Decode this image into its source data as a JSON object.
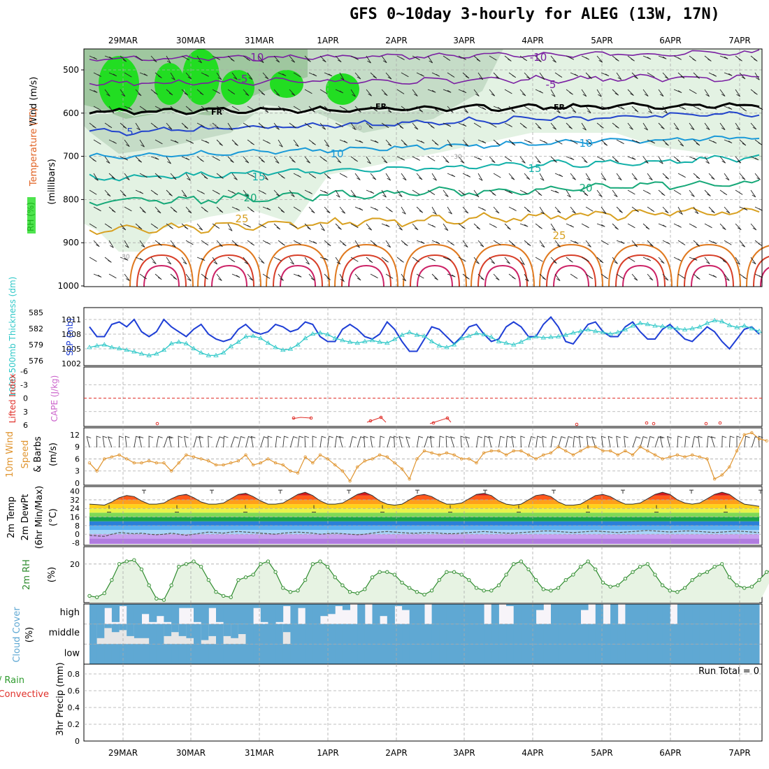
{
  "title": "GFS 0~10day 3-hourly for ALEG (13W, 17N)",
  "date_labels": [
    "29MAR",
    "30MAR",
    "31MAR",
    "1APR",
    "2APR",
    "3APR",
    "4APR",
    "5APR",
    "6APR",
    "7APR"
  ],
  "colors": {
    "rh_green": "#22dd22",
    "slp_line": "#1f3fd6",
    "thickness_line": "#2fc8c8",
    "wind_line": "#e09530",
    "rh2m_line": "#2e8b2e",
    "cloud_blue": "#5fa8d3",
    "lifted_index": "#e0302a",
    "cape": "#cc66cc"
  },
  "panels": {
    "upper": {
      "ylabel_rh": "RH (%)",
      "ylabel_temp": "Temperature (°C)",
      "ylabel_wind": "Wind (m/s)",
      "ylabel_units": "(millibars)",
      "p_ticks": [
        "500",
        "600",
        "700",
        "800",
        "900",
        "1000"
      ],
      "contour_labels": [
        {
          "text": "-10",
          "color": "#7a1fa2"
        },
        {
          "text": "-10",
          "color": "#7a1fa2"
        },
        {
          "text": "-5",
          "color": "#7a1fa2"
        },
        {
          "text": "-5",
          "color": "#7a1fa2"
        },
        {
          "text": "FR",
          "color": "#000000"
        },
        {
          "text": "FR",
          "color": "#000000"
        },
        {
          "text": "FR",
          "color": "#000000"
        },
        {
          "text": "5",
          "color": "#2244cc"
        },
        {
          "text": "10",
          "color": "#1a9ad8"
        },
        {
          "text": "10",
          "color": "#1a9ad8"
        },
        {
          "text": "15",
          "color": "#12b0a8"
        },
        {
          "text": "15",
          "color": "#12b0a8"
        },
        {
          "text": "20",
          "color": "#16a878"
        },
        {
          "text": "20",
          "color": "#16a878"
        },
        {
          "text": "25",
          "color": "#d8a020"
        },
        {
          "text": "25",
          "color": "#d8a020"
        },
        {
          "text": "50",
          "color": "#9a9a9a"
        },
        {
          "text": "50",
          "color": "#9a9a9a"
        },
        {
          "text": "30",
          "color": "#9a9a9a"
        },
        {
          "text": "30",
          "color": "#9a9a9a"
        }
      ]
    },
    "slp": {
      "ylabel_thickness": "1000-500mb Thickness (dm)",
      "ylabel_slp": "SLP (mb)",
      "ticks_thickness": [
        "585",
        "582",
        "579",
        "576"
      ],
      "ticks_slp": [
        "1011",
        "1008",
        "1005",
        "1002"
      ]
    },
    "cape": {
      "ylabel_li": "Lifted Index",
      "ylabel_cape": "CAPE (J/kg)",
      "ticks": [
        "-6",
        "-3",
        "0",
        "3",
        "6"
      ]
    },
    "wind10m": {
      "ylabel1": "10m Wind",
      "ylabel2": "Speed",
      "ylabel3": "& Barbs",
      "ylabel_units": "(m/s)",
      "ticks": [
        "12",
        "9",
        "6",
        "3",
        "0"
      ]
    },
    "temp2m": {
      "ylabel1": "2m Temp",
      "ylabel2": "2m DewPt",
      "ylabel3": "(6hr Min/Max)",
      "ylabel_units": "(°C)",
      "ticks": [
        "40",
        "32",
        "24",
        "16",
        "8",
        "0",
        "-8"
      ]
    },
    "rh2m": {
      "ylabel": "2m RH",
      "ylabel_units": "(%)",
      "ticks": [
        "20"
      ]
    },
    "cloud": {
      "ylabel": "Cloud Cover",
      "ylabel_units": "(%)",
      "levels": [
        "high",
        "middle",
        "low"
      ]
    },
    "precip": {
      "ylabel1": "Total / Rain",
      "ylabel2": "Convective",
      "ylabel3": "3hr Precip (mm)",
      "ticks": [
        "0.8",
        "0.6",
        "0.4",
        "0.2",
        "0"
      ],
      "run_total": "Run Total = 0"
    }
  },
  "chart_data": [
    {
      "type": "line",
      "panel": "slp",
      "series": [
        {
          "name": "SLP (mb)",
          "values": [
            1009.5,
            1007.5,
            1007.5,
            1010,
            1010.5,
            1009.5,
            1011,
            1008.5,
            1007.5,
            1008.5,
            1011,
            1009.5,
            1008.5,
            1007.5,
            1009,
            1010,
            1008,
            1007,
            1006.5,
            1007,
            1009,
            1010,
            1008.5,
            1008,
            1008.5,
            1010,
            1009.5,
            1008.5,
            1009,
            1010.5,
            1010,
            1007.5,
            1006.5,
            1006.5,
            1009,
            1010,
            1009,
            1007.5,
            1007,
            1008,
            1010.5,
            1009,
            1006.5,
            1004.5,
            1004.5,
            1007,
            1009.5,
            1009,
            1007.5,
            1006,
            1007.5,
            1009.5,
            1010,
            1008,
            1006.5,
            1007,
            1009.5,
            1010.5,
            1009.5,
            1007.5,
            1007.5,
            1010,
            1011.5,
            1009.5,
            1006.5,
            1006,
            1008,
            1010,
            1010.5,
            1008.5,
            1007.5,
            1007.5,
            1009.5,
            1010.5,
            1008.5,
            1007,
            1007,
            1009,
            1010,
            1008.5,
            1007,
            1006.5,
            1008,
            1009.5,
            1008.5,
            1006.5,
            1005,
            1007,
            1009,
            1009.5,
            1008
          ]
        },
        {
          "name": "1000-500mb Thickness (dm)",
          "values": [
            578.5,
            578.8,
            579,
            578.5,
            578.3,
            578,
            577.7,
            577.3,
            577,
            577.3,
            578,
            579.2,
            579.5,
            579.2,
            578.3,
            577.5,
            577,
            577,
            577.5,
            578.7,
            579.5,
            580.5,
            580.6,
            580.2,
            579.3,
            578.5,
            578,
            578.2,
            579,
            580.2,
            581,
            581.2,
            580.9,
            580.2,
            579.8,
            579.5,
            579.3,
            579.6,
            579.8,
            579.5,
            579.3,
            580,
            580.8,
            581.3,
            580.8,
            580.6,
            579.6,
            578.8,
            578.5,
            579,
            580.2,
            580.6,
            581.1,
            580.9,
            580.4,
            579.6,
            579.3,
            579,
            579.5,
            580.2,
            580.5,
            580.3,
            580.4,
            580.5,
            580.8,
            581.2,
            581.5,
            581.8,
            581.5,
            581.3,
            581,
            581.3,
            581.8,
            582.5,
            583,
            582.8,
            582.5,
            582.4,
            582.2,
            582,
            581.8,
            582,
            582.3,
            583,
            583.5,
            583.3,
            582.6,
            582.2,
            582.5,
            582,
            581.5
          ]
        }
      ],
      "ylim_slp": [
        1002,
        1013
      ],
      "ylim_thickness": [
        575.5,
        585.5
      ]
    },
    {
      "type": "line",
      "panel": "wind10m",
      "series": [
        {
          "name": "10m Wind Speed (m/s)",
          "values": [
            5,
            3,
            6,
            6.5,
            7,
            6,
            5,
            5,
            5.5,
            5,
            5,
            3,
            5,
            7,
            6.5,
            6,
            5.5,
            4.5,
            4.5,
            5,
            5.5,
            7,
            4.5,
            5,
            6,
            5,
            4.5,
            3,
            2.5,
            6.5,
            5,
            7,
            6,
            4.5,
            3,
            0.5,
            4,
            5.5,
            6,
            7,
            6.5,
            5,
            3.5,
            1,
            6,
            8,
            7.5,
            7,
            7.5,
            7,
            6,
            6,
            5,
            7.5,
            8,
            8,
            7,
            8,
            8,
            7,
            6,
            7,
            7.5,
            9,
            8,
            7,
            8,
            9,
            9,
            8,
            8,
            7,
            8,
            7,
            9,
            8,
            7,
            6,
            6.5,
            7,
            6.5,
            7,
            6.5,
            6,
            1,
            2,
            4,
            8,
            12,
            12.5,
            11,
            10.5
          ]
        }
      ],
      "ylim": [
        0,
        13
      ]
    },
    {
      "type": "area",
      "panel": "temp2m",
      "series": [
        {
          "name": "2m Temp (°C)",
          "values": [
            28,
            27.5,
            27,
            30,
            34,
            36,
            35,
            31,
            28,
            28,
            29,
            33,
            36,
            37,
            34,
            30,
            28,
            28,
            29,
            33,
            37,
            38,
            35,
            31,
            28,
            28,
            29,
            33,
            37,
            39,
            36,
            31,
            28,
            28,
            29,
            33,
            37,
            39,
            36,
            31,
            28,
            27,
            28,
            32,
            36,
            37,
            35,
            31,
            28,
            28,
            29,
            33,
            37,
            38,
            36,
            31,
            28,
            27,
            28,
            32,
            36,
            37,
            35,
            30,
            27,
            27,
            28,
            32,
            36,
            37,
            35,
            31,
            28,
            28,
            29,
            33,
            37,
            39,
            37,
            32,
            29,
            28,
            29,
            33,
            37,
            39,
            37,
            32,
            28,
            27,
            26
          ]
        },
        {
          "name": "2m DewPt (°C)",
          "values": [
            -1,
            -1.5,
            -2,
            0,
            1.5,
            1,
            0.5,
            1,
            0,
            -0.5,
            0,
            1,
            0,
            -1,
            0,
            1,
            2,
            1.5,
            1,
            2,
            2.5,
            2,
            1.5,
            1,
            0.5,
            0,
            1,
            1.5,
            2,
            1.5,
            1,
            0,
            0.5,
            1,
            0.5,
            0,
            -0.5,
            0,
            1,
            2,
            2.5,
            2,
            1.5,
            1,
            1,
            1.5,
            1.5,
            1,
            0.5,
            0.5,
            1,
            1.5,
            2,
            2.5,
            2,
            1.5,
            1,
            1,
            1.5,
            2,
            2.5,
            3,
            3,
            2.5,
            2,
            1.5,
            2,
            2.5,
            3,
            2.5,
            2,
            1.5,
            2,
            2.5,
            3,
            3.5,
            3,
            2.5,
            2,
            2.5,
            3,
            3,
            2.5,
            2,
            1.5,
            2,
            2.5,
            3,
            2.5,
            2,
            1.5
          ]
        }
      ],
      "ylim": [
        -9,
        43
      ]
    },
    {
      "type": "line",
      "panel": "rh2m",
      "series": [
        {
          "name": "2m RH (%)",
          "values": [
            8,
            7.5,
            9,
            14,
            20,
            21,
            21.5,
            18,
            12,
            7,
            6.5,
            12,
            19,
            20,
            21,
            19,
            14,
            9.5,
            8,
            7.5,
            14,
            15,
            16,
            20,
            21,
            17,
            11,
            9.5,
            10,
            14,
            20,
            21,
            19,
            15,
            12,
            9.5,
            9,
            10.5,
            15,
            17,
            17,
            16,
            13,
            11,
            9.5,
            8.5,
            10,
            14,
            17,
            17,
            16,
            14,
            11,
            10,
            10,
            12,
            16,
            20,
            21,
            18,
            14,
            10.5,
            10,
            11,
            14,
            16,
            19,
            21,
            18,
            13,
            11.5,
            12,
            14.5,
            17,
            19,
            20,
            16,
            12,
            10,
            9.5,
            11,
            14,
            16,
            17,
            19,
            20,
            15,
            12,
            11,
            11.5,
            14,
            17,
            18,
            22
          ]
        }
      ],
      "ylim": [
        6,
        26
      ],
      "yticks": [
        20
      ]
    },
    {
      "type": "bar",
      "panel": "cloud",
      "series": [
        {
          "name": "high",
          "values": [
            100,
            100,
            20,
            90,
            10,
            100,
            100,
            50,
            90,
            60,
            90,
            100,
            20,
            20,
            90,
            100,
            20,
            90,
            100,
            100,
            100,
            100,
            20,
            90,
            100,
            90,
            10,
            100,
            20,
            100,
            100,
            60,
            50,
            10,
            30,
            0,
            100,
            0,
            100,
            60,
            100,
            10,
            30,
            100,
            100,
            0,
            100,
            100,
            100,
            100,
            100,
            100,
            100,
            0,
            100,
            0,
            10,
            100,
            100,
            100,
            30,
            0,
            100,
            100,
            100,
            100,
            30,
            0,
            100,
            0,
            100,
            0,
            100,
            100,
            100,
            100,
            100,
            100,
            0,
            100,
            100,
            100,
            100,
            100,
            100,
            100,
            100,
            100,
            100,
            100
          ]
        },
        {
          "name": "middle",
          "values": [
            0,
            30,
            80,
            60,
            70,
            40,
            30,
            30,
            0,
            0,
            40,
            60,
            40,
            30,
            0,
            20,
            40,
            0,
            40,
            30,
            50,
            0,
            0,
            0,
            0,
            0,
            60,
            0,
            0,
            0,
            0,
            0,
            0,
            0,
            0,
            0,
            0,
            0,
            0,
            0,
            0,
            0,
            0,
            0,
            0,
            0,
            0,
            0,
            0,
            0,
            0,
            0,
            0,
            0,
            0,
            0,
            0,
            0,
            0,
            0,
            0,
            0,
            0,
            0,
            0,
            0,
            0,
            0,
            0,
            0,
            0,
            0,
            0,
            0,
            0,
            0,
            0,
            0,
            0,
            0,
            0,
            0,
            0,
            0,
            0,
            0,
            0,
            0,
            0,
            0,
            0
          ]
        },
        {
          "name": "low",
          "values": [
            100,
            100,
            100,
            100,
            100,
            100,
            100,
            100,
            100,
            100,
            100,
            100,
            100,
            100,
            100,
            100,
            100,
            100,
            100,
            100,
            100,
            100,
            100,
            100,
            100,
            100,
            100,
            100,
            100,
            100,
            100,
            100,
            100,
            100,
            100,
            100,
            100,
            100,
            100,
            100,
            100,
            100,
            100,
            100,
            100,
            100,
            100,
            100,
            100,
            100,
            100,
            100,
            100,
            100,
            100,
            100,
            100,
            100,
            100,
            100,
            100,
            100,
            100,
            100,
            100,
            100,
            100,
            100,
            100,
            100,
            100,
            100,
            100,
            100,
            100,
            100,
            100,
            100,
            100,
            100,
            100,
            100,
            100,
            100,
            100,
            100,
            100,
            100,
            100,
            100,
            100
          ]
        }
      ]
    },
    {
      "type": "bar",
      "panel": "precip",
      "series": [
        {
          "name": "Total / Rain",
          "values": []
        },
        {
          "name": "Convective",
          "values": []
        }
      ],
      "ylim": [
        0,
        0.9
      ]
    }
  ]
}
